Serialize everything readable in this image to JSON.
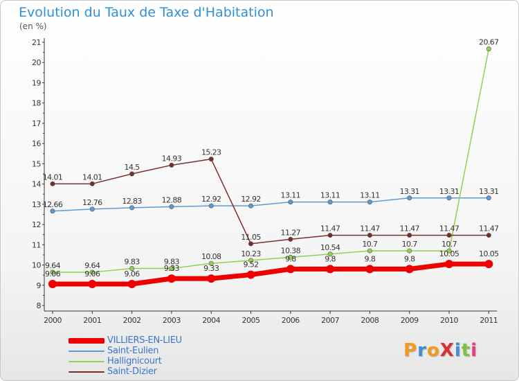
{
  "title": "Evolution du Taux de Taxe d'Habitation",
  "unit_label": "(en %)",
  "logo": {
    "text": "ProXiti",
    "colors": [
      "#f39a1e",
      "#3c8fd6",
      "#f39a1e",
      "#d9312e",
      "#3c8fd6",
      "#7cc242",
      "#e83b7f"
    ]
  },
  "chart_data": {
    "type": "line",
    "x": [
      "2000",
      "2001",
      "2002",
      "2003",
      "2004",
      "2005",
      "2006",
      "2007",
      "2008",
      "2009",
      "2010",
      "2011"
    ],
    "ylim": [
      8,
      21
    ],
    "yticks": [
      "8",
      "9",
      "10",
      "11",
      "12",
      "13",
      "14",
      "15",
      "16",
      "17",
      "18",
      "19",
      "20",
      "21"
    ],
    "grid": false,
    "legend_position": "bottom-left",
    "series": [
      {
        "name": "Saint-Eulien",
        "color": "#5b9bd5",
        "values": [
          12.66,
          12.76,
          12.83,
          12.88,
          12.92,
          12.92,
          13.11,
          13.11,
          13.11,
          13.31,
          13.31,
          13.31
        ],
        "labels": [
          "12.66",
          "12.76",
          "12.83",
          "12.88",
          "12.92",
          "12.92",
          "13.11",
          "13.11",
          "13.11",
          "13.31",
          "13.31",
          "13.31"
        ]
      },
      {
        "name": "Hallignicourt",
        "color": "#92d050",
        "values": [
          9.64,
          9.64,
          9.83,
          9.83,
          10.08,
          10.23,
          10.38,
          10.54,
          10.7,
          10.7,
          10.7,
          20.67
        ],
        "labels": [
          "9.64",
          "9.64",
          "9.83",
          "9.83",
          "10.08",
          "10.23",
          "10.38",
          "10.54",
          "10.7",
          "10.7",
          "10.7",
          "20.67"
        ]
      },
      {
        "name": "Saint-Dizier",
        "color": "#7b2c2c",
        "values": [
          14.01,
          14.01,
          14.5,
          14.93,
          15.23,
          11.05,
          11.27,
          11.47,
          11.47,
          11.47,
          11.47,
          11.47
        ],
        "labels": [
          "14.01",
          "14.01",
          "14.5",
          "14.93",
          "15.23",
          "11.05",
          "11.27",
          "11.47",
          "11.47",
          "11.47",
          "11.47",
          "11.47"
        ]
      },
      {
        "name": "VILLIERS-EN-LIEU",
        "color": "#ee0000",
        "values": [
          9.06,
          9.06,
          9.06,
          9.33,
          9.33,
          9.52,
          9.8,
          9.8,
          9.8,
          9.8,
          10.05,
          10.05
        ],
        "labels": [
          "9.06",
          "9.06",
          "9.06",
          "9.33",
          "9.33",
          "9.52",
          "9.8",
          "9.8",
          "9.8",
          "9.8",
          "10.05",
          "10.05"
        ]
      }
    ],
    "legend_order": [
      "VILLIERS-EN-LIEU",
      "Saint-Eulien",
      "Hallignicourt",
      "Saint-Dizier"
    ]
  }
}
